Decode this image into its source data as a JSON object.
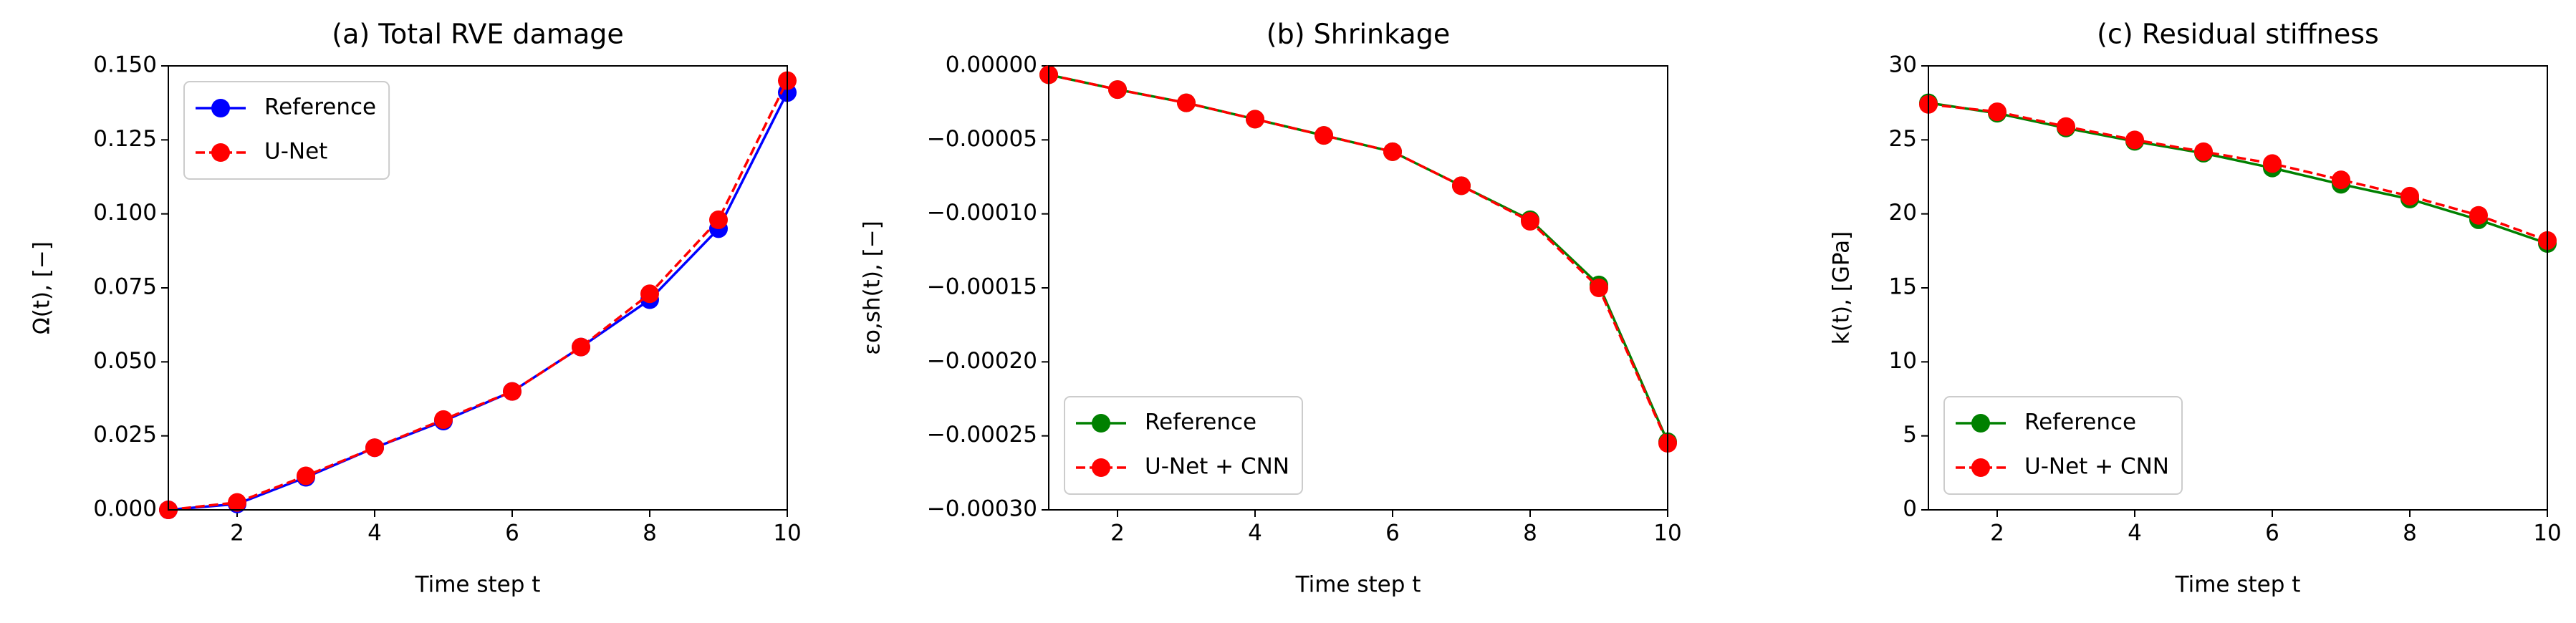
{
  "chart_data": [
    {
      "type": "line",
      "title": "(a) Total RVE damage",
      "xlabel": "Time step t",
      "ylabel": "Ω(t), [−]",
      "x": [
        1,
        2,
        3,
        4,
        5,
        6,
        7,
        8,
        9,
        10
      ],
      "xlim": [
        1,
        10
      ],
      "xticks": [
        2,
        4,
        6,
        8,
        10
      ],
      "ylim": [
        0,
        0.15
      ],
      "yticks": [
        {
          "value": 0,
          "label": "0.000"
        },
        {
          "value": 0.025,
          "label": "0.025"
        },
        {
          "value": 0.05,
          "label": "0.050"
        },
        {
          "value": 0.075,
          "label": "0.075"
        },
        {
          "value": 0.1,
          "label": "0.100"
        },
        {
          "value": 0.125,
          "label": "0.125"
        },
        {
          "value": 0.15,
          "label": "0.150"
        }
      ],
      "legend": "upper left",
      "series": [
        {
          "name": "Reference",
          "color": "#0000ff",
          "linestyle": "-",
          "values": [
            0,
            0.002,
            0.011,
            0.021,
            0.03,
            0.04,
            0.055,
            0.071,
            0.095,
            0.141
          ]
        },
        {
          "name": "U-Net",
          "color": "#ff0000",
          "linestyle": "--",
          "values": [
            0,
            0.0025,
            0.0115,
            0.021,
            0.0305,
            0.04,
            0.055,
            0.073,
            0.098,
            0.145
          ]
        }
      ]
    },
    {
      "type": "line",
      "title": "(b) Shrinkage",
      "xlabel": "Time step t",
      "ylabel": "εo,sh(t), [−]",
      "x": [
        1,
        2,
        3,
        4,
        5,
        6,
        7,
        8,
        9,
        10
      ],
      "xlim": [
        1,
        10
      ],
      "xticks": [
        2,
        4,
        6,
        8,
        10
      ],
      "ylim": [
        -0.0003,
        0
      ],
      "yticks": [
        {
          "value": -0.0003,
          "label": "−0.00030"
        },
        {
          "value": -0.00025,
          "label": "−0.00025"
        },
        {
          "value": -0.0002,
          "label": "−0.00020"
        },
        {
          "value": -0.00015,
          "label": "−0.00015"
        },
        {
          "value": -0.0001,
          "label": "−0.00010"
        },
        {
          "value": -5e-05,
          "label": "−0.00005"
        },
        {
          "value": 0,
          "label": "0.00000"
        }
      ],
      "legend": "lower left",
      "series": [
        {
          "name": "Reference",
          "color": "#008000",
          "linestyle": "-",
          "values": [
            -6e-06,
            -1.6e-05,
            -2.5e-05,
            -3.6e-05,
            -4.7e-05,
            -5.8e-05,
            -8.1e-05,
            -0.000104,
            -0.000148,
            -0.000254
          ]
        },
        {
          "name": "U-Net + CNN",
          "color": "#ff0000",
          "linestyle": "--",
          "values": [
            -6e-06,
            -1.6e-05,
            -2.5e-05,
            -3.6e-05,
            -4.7e-05,
            -5.8e-05,
            -8.1e-05,
            -0.000105,
            -0.00015,
            -0.000255
          ]
        }
      ]
    },
    {
      "type": "line",
      "title": "(c) Residual stiffness",
      "xlabel": "Time step t",
      "ylabel": "k(t), [GPa]",
      "x": [
        1,
        2,
        3,
        4,
        5,
        6,
        7,
        8,
        9,
        10
      ],
      "xlim": [
        1,
        10
      ],
      "xticks": [
        2,
        4,
        6,
        8,
        10
      ],
      "ylim": [
        0,
        30
      ],
      "yticks": [
        0,
        5,
        10,
        15,
        20,
        25,
        30
      ],
      "legend": "lower left",
      "series": [
        {
          "name": "Reference",
          "color": "#008000",
          "linestyle": "-",
          "values": [
            27.5,
            26.8,
            25.8,
            24.9,
            24.1,
            23.1,
            22.0,
            21.0,
            19.6,
            18.0
          ]
        },
        {
          "name": "U-Net + CNN",
          "color": "#ff0000",
          "linestyle": "--",
          "values": [
            27.4,
            26.9,
            25.9,
            25.0,
            24.2,
            23.4,
            22.3,
            21.2,
            19.9,
            18.2
          ]
        }
      ]
    }
  ]
}
